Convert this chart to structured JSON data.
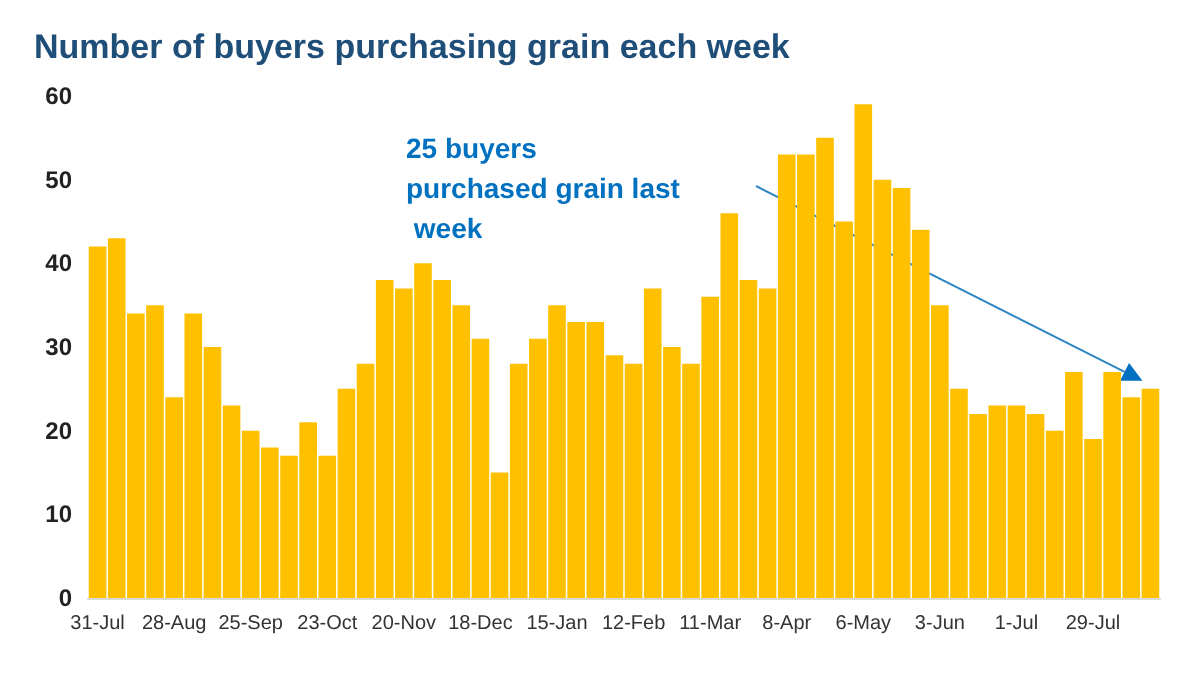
{
  "chart_data": {
    "type": "bar",
    "title": "Number of buyers purchasing grain each week",
    "categories": [
      "31-Jul",
      null,
      null,
      null,
      "28-Aug",
      null,
      null,
      null,
      "25-Sep",
      null,
      null,
      null,
      "23-Oct",
      null,
      null,
      null,
      "20-Nov",
      null,
      null,
      null,
      "18-Dec",
      null,
      null,
      null,
      "15-Jan",
      null,
      null,
      null,
      "12-Feb",
      null,
      null,
      null,
      "11-Mar",
      null,
      null,
      null,
      "8-Apr",
      null,
      null,
      null,
      "6-May",
      null,
      null,
      null,
      "3-Jun",
      null,
      null,
      null,
      "1-Jul",
      null,
      null,
      null,
      "29-Jul",
      null,
      null,
      null
    ],
    "values": [
      42,
      43,
      34,
      35,
      24,
      34,
      30,
      23,
      20,
      18,
      17,
      21,
      17,
      25,
      28,
      38,
      37,
      40,
      38,
      35,
      31,
      15,
      28,
      31,
      35,
      33,
      33,
      29,
      28,
      37,
      30,
      28,
      36,
      46,
      38,
      37,
      53,
      53,
      55,
      45,
      59,
      50,
      49,
      44,
      35,
      25,
      22,
      23,
      23,
      22,
      20,
      27,
      19,
      27,
      24,
      25
    ],
    "color": "#ffc000",
    "ylim": [
      0,
      60
    ],
    "yticks": [
      0,
      10,
      20,
      30,
      40,
      50,
      60
    ],
    "grid": false,
    "annotations": [
      "25 buyers purchased grain last week"
    ]
  }
}
